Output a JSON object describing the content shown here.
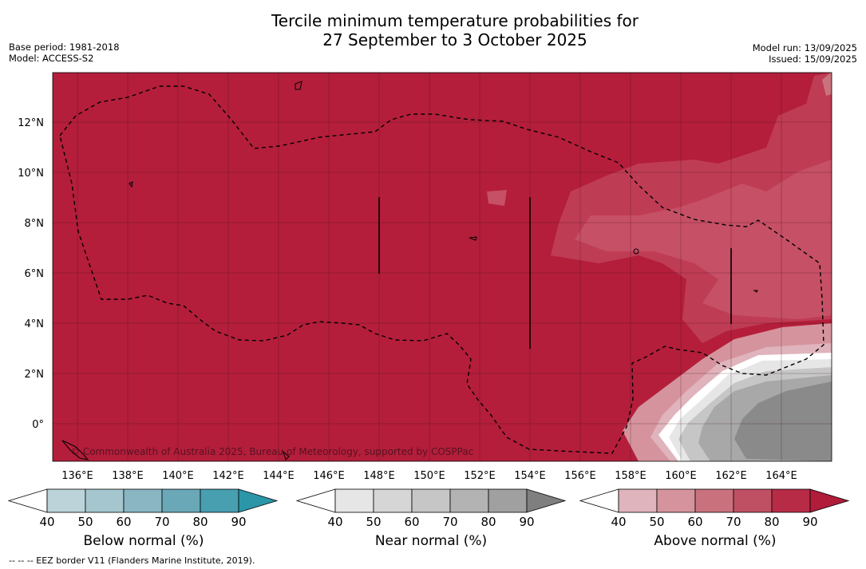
{
  "title_line1": "Tercile minimum temperature probabilities for",
  "title_line2": "27 September to 3 October 2025",
  "meta_left": [
    "Base period: 1981-2018",
    "Model: ACCESS-S2"
  ],
  "meta_right": [
    "Model run: 13/09/2025",
    "Issued: 15/09/2025"
  ],
  "copyright": "© Commonwealth of Australia 2025, Bureau of Meteorology, supported by COSPPac",
  "footer": "--  --  -- EEZ border V11 (Flanders Marine Institute, 2019).",
  "lon_ticks": [
    "136°E",
    "138°E",
    "140°E",
    "142°E",
    "144°E",
    "146°E",
    "148°E",
    "150°E",
    "152°E",
    "154°E",
    "156°E",
    "158°E",
    "160°E",
    "162°E",
    "164°E"
  ],
  "lat_ticks": [
    "12°N",
    "10°N",
    "8°N",
    "6°N",
    "4°N",
    "2°N",
    "0°"
  ],
  "colorbars": [
    {
      "label": "Below normal (%)",
      "ticks": [
        "40",
        "50",
        "60",
        "70",
        "80",
        "90"
      ],
      "colors": [
        "#ffffff",
        "#bcd3da",
        "#a5c6ce",
        "#89b6c2",
        "#6aa8b7",
        "#479fb0",
        "#2b96a8"
      ]
    },
    {
      "label": "Near normal (%)",
      "ticks": [
        "40",
        "50",
        "60",
        "70",
        "80",
        "90"
      ],
      "colors": [
        "#ffffff",
        "#e6e6e6",
        "#d6d6d6",
        "#c6c6c6",
        "#b3b3b3",
        "#a0a0a0",
        "#7f7f7f"
      ]
    },
    {
      "label": "Above normal (%)",
      "ticks": [
        "40",
        "50",
        "60",
        "70",
        "80",
        "90"
      ],
      "colors": [
        "#ffffff",
        "#e0b4bc",
        "#d5949d",
        "#c9727e",
        "#bf5063",
        "#b72b46",
        "#b01c3a"
      ]
    }
  ],
  "colors": {
    "dominant_above": "#b41e3b",
    "border_line": "#000000"
  }
}
